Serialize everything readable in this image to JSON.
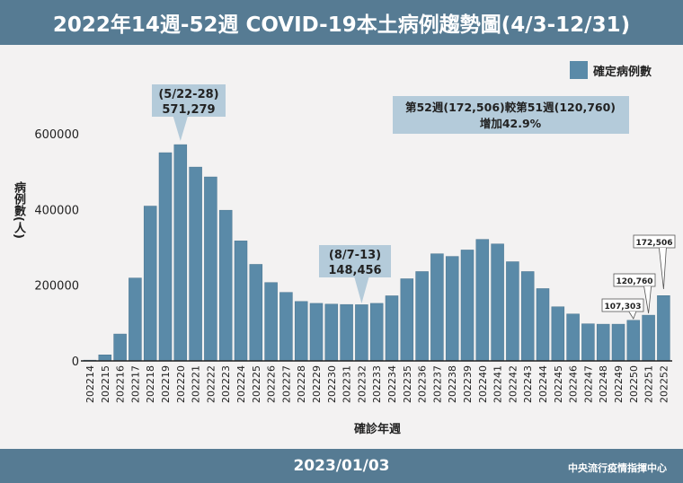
{
  "header": {
    "title": "2022年14週-52週 COVID-19本土病例趨勢圖(4/3-12/31)"
  },
  "footer": {
    "date": "2023/01/03",
    "org": "中央流行疫情指揮中心"
  },
  "colors": {
    "bar": "#5a8aa8",
    "header": "#567b93",
    "callout": "#b4cbda"
  },
  "chart_data": {
    "type": "bar",
    "title": "2022年14週-52週 COVID-19本土病例趨勢圖(4/3-12/31)",
    "xlabel": "確診年週",
    "ylabel": "病例數(人)",
    "ylim": [
      0,
      600000
    ],
    "yticks": [
      "0",
      "200000",
      "400000",
      "600000"
    ],
    "legend": {
      "label": "確定病例數",
      "placement": "top-right"
    },
    "categories": [
      "202214",
      "202215",
      "202216",
      "202217",
      "202218",
      "202219",
      "202220",
      "202221",
      "202222",
      "202223",
      "202224",
      "202225",
      "202226",
      "202227",
      "202228",
      "202229",
      "202230",
      "202231",
      "202232",
      "202233",
      "202234",
      "202235",
      "202236",
      "202237",
      "202238",
      "202239",
      "202240",
      "202241",
      "202242",
      "202243",
      "202244",
      "202245",
      "202246",
      "202247",
      "202248",
      "202249",
      "202250",
      "202251",
      "202252"
    ],
    "values": [
      2000,
      16000,
      71000,
      219000,
      409000,
      550000,
      571279,
      512000,
      486000,
      398000,
      317000,
      255000,
      207000,
      181000,
      157000,
      152000,
      150000,
      149000,
      148456,
      152000,
      172000,
      217000,
      236000,
      283000,
      276000,
      293000,
      321000,
      309000,
      262000,
      236000,
      191000,
      143000,
      124000,
      98000,
      97000,
      97000,
      107303,
      120760,
      172506
    ],
    "annotations": [
      {
        "week": "202220",
        "line1": "(5/22-28)",
        "line2": "571,279"
      },
      {
        "week": "202232",
        "line1": "(8/7-13)",
        "line2": "148,456"
      },
      {
        "week": "202250",
        "text": "107,303"
      },
      {
        "week": "202251",
        "text": "120,760"
      },
      {
        "week": "202252",
        "text": "172,506"
      }
    ],
    "summary": {
      "line1": "第52週(172,506)較第51週(120,760)",
      "line2": "增加42.9%"
    }
  }
}
